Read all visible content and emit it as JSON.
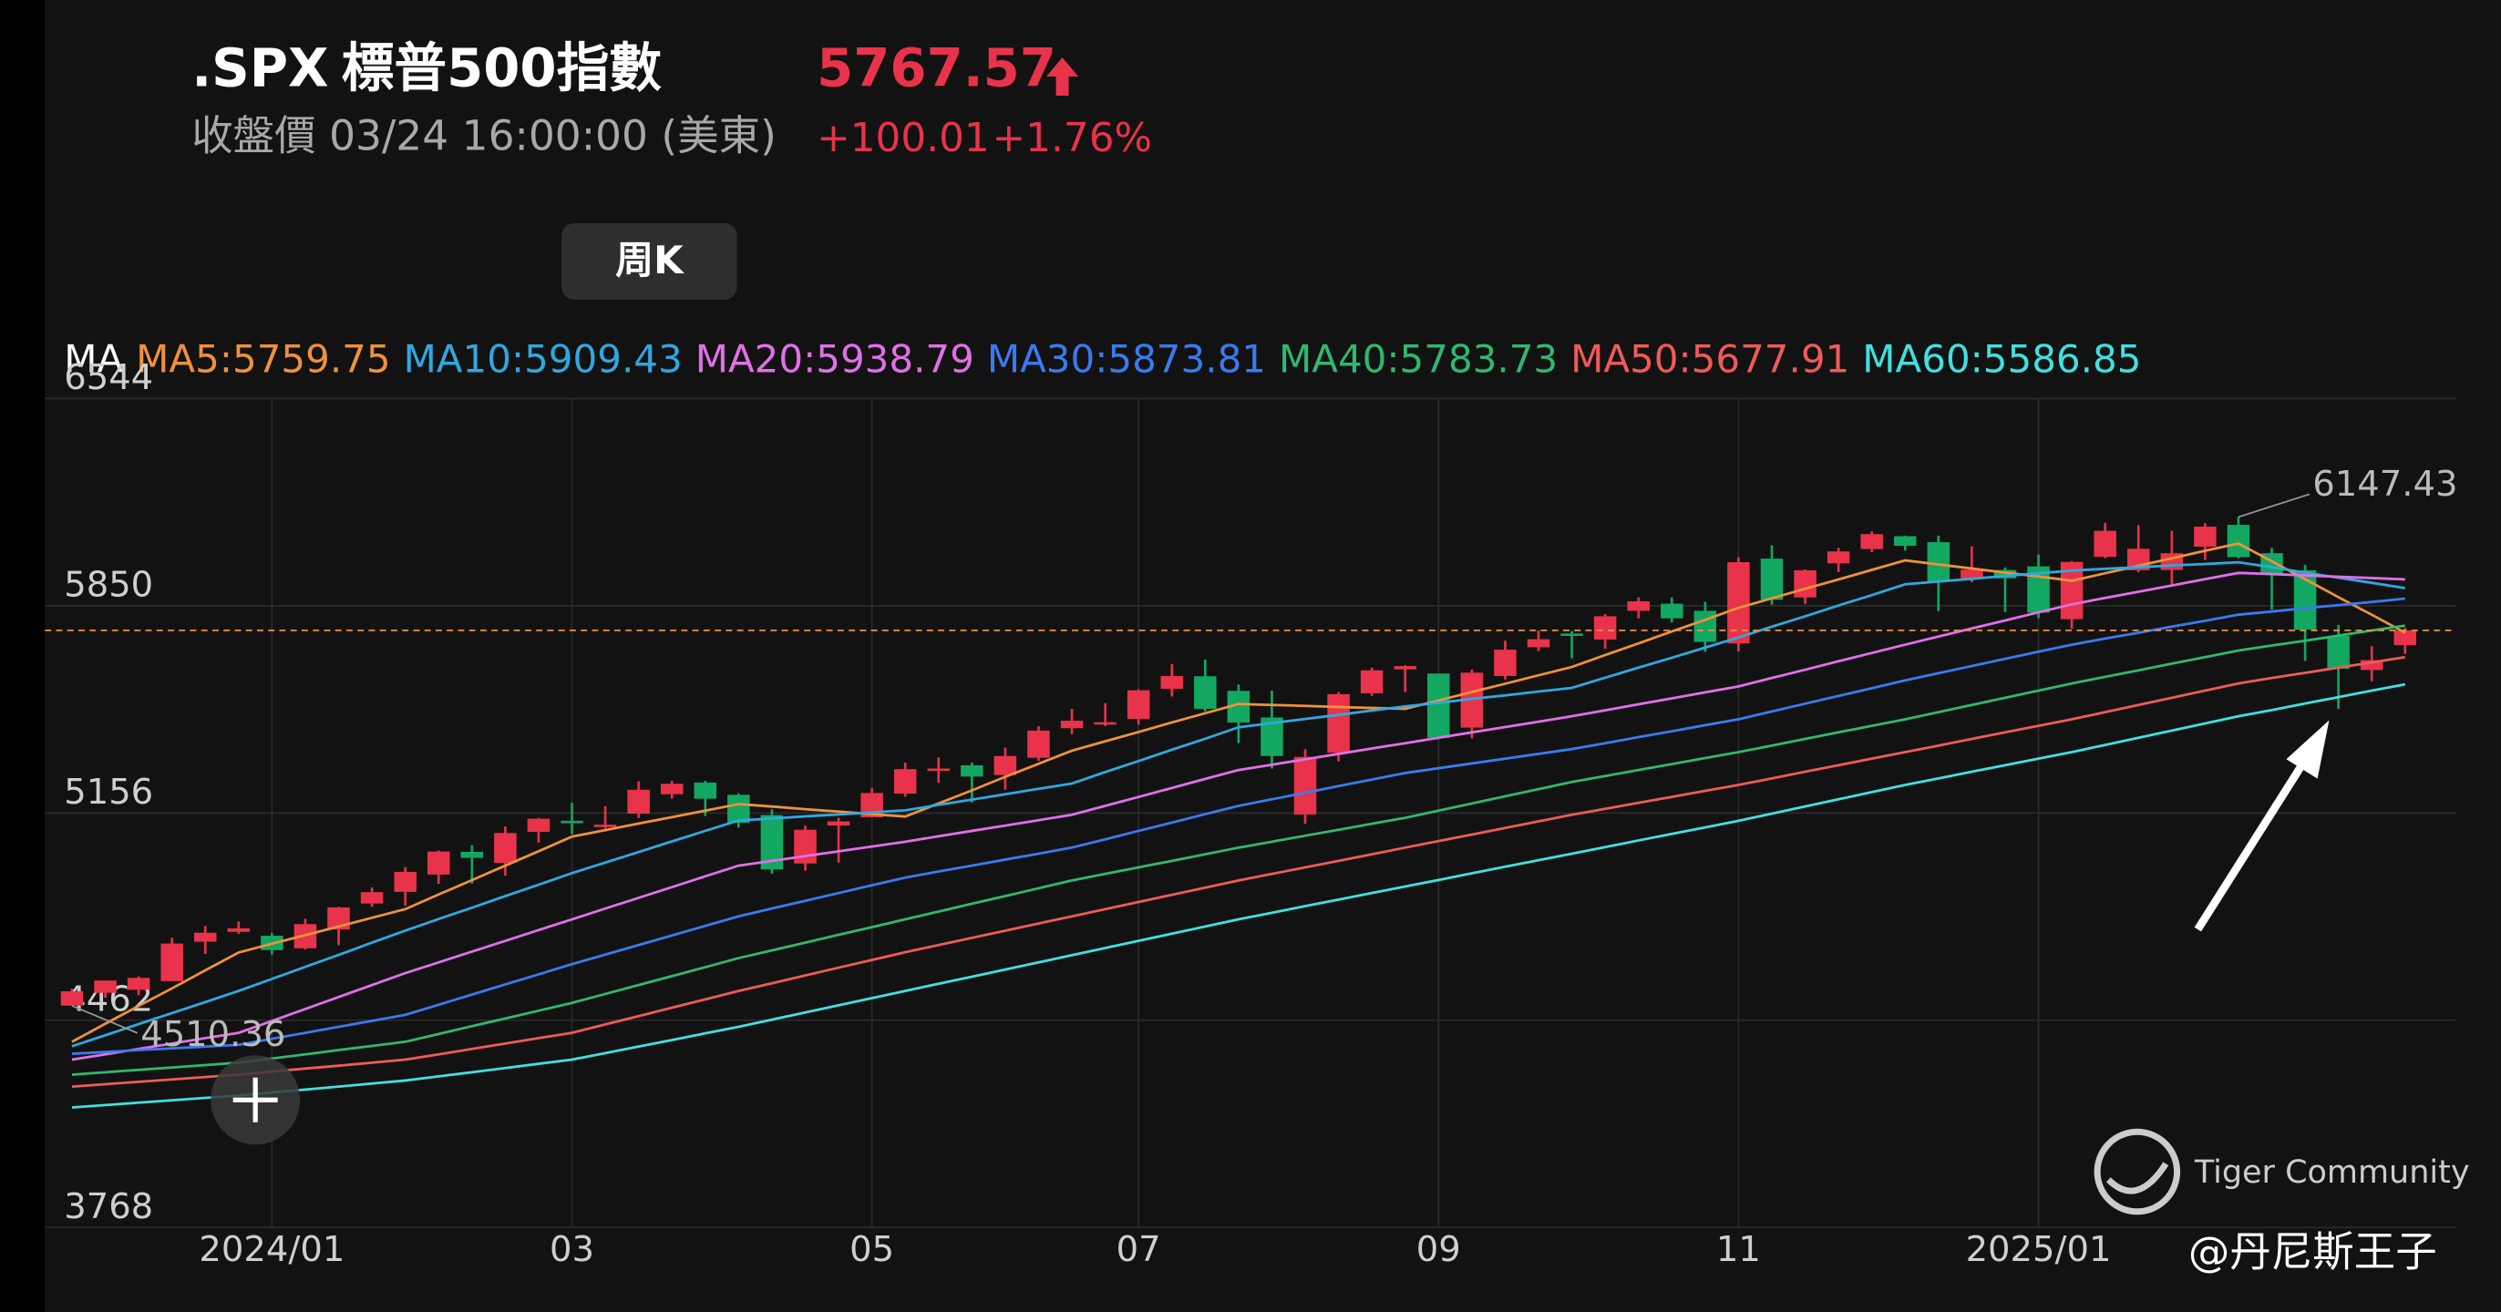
{
  "chart_data": {
    "type": "candlestick",
    "symbol": ".SPX",
    "name": "標普500指數",
    "time_label": "收盤價 03/24 16:00:00 (美東)",
    "change": "+100.01",
    "change_pct": "+1.76%",
    "period_button": "周K",
    "legend_title": "MA",
    "up_color": "#e8334a",
    "down_color": "#12a862",
    "ylim": [
      3768,
      6544
    ],
    "yticks": [
      3768,
      4462,
      5156,
      5850,
      6544
    ],
    "grid": true,
    "categories": [
      null,
      null,
      null,
      null,
      null,
      null,
      "2024/01",
      null,
      null,
      null,
      null,
      null,
      null,
      null,
      null,
      "03",
      null,
      null,
      null,
      null,
      null,
      null,
      null,
      null,
      "05",
      null,
      null,
      null,
      null,
      null,
      null,
      null,
      "07",
      null,
      null,
      null,
      null,
      null,
      null,
      null,
      null,
      "09",
      null,
      null,
      null,
      null,
      null,
      null,
      null,
      null,
      "11",
      null,
      null,
      null,
      null,
      null,
      null,
      null,
      null,
      "2025/01",
      null,
      null,
      null,
      null,
      null,
      null,
      null,
      null,
      null,
      null,
      null
    ],
    "open": [
      4511,
      4554,
      4564,
      4593,
      4725,
      4758,
      4745,
      4703,
      4766,
      4853,
      4892,
      4950,
      5026,
      4989,
      5093,
      5130,
      5112,
      5154,
      5219,
      5258,
      5217,
      5149,
      4987,
      5114,
      5142,
      5221,
      5305,
      5316,
      5283,
      5341,
      5440,
      5460,
      5471,
      5572,
      5614,
      5565,
      5476,
      5151,
      5358,
      5557,
      5637,
      5623,
      5442,
      5615,
      5711,
      5757,
      5737,
      5833,
      5857,
      5833,
      5724,
      6008,
      5878,
      5992,
      6040,
      6083,
      6063,
      5941,
      5970,
      5982,
      5805,
      6014,
      5969,
      5970,
      6048,
      6121,
      6026,
      5969,
      5749,
      5635,
      5718
    ],
    "high": [
      4568,
      4595,
      4609,
      4738,
      4778,
      4793,
      4754,
      4802,
      4842,
      4907,
      4975,
      5030,
      5048,
      5111,
      5140,
      5190,
      5179,
      5262,
      5264,
      5264,
      5222,
      5168,
      5114,
      5140,
      5239,
      5325,
      5342,
      5325,
      5375,
      5447,
      5505,
      5524,
      5570,
      5655,
      5670,
      5586,
      5566,
      5370,
      5561,
      5643,
      5651,
      5623,
      5636,
      5733,
      5767,
      5765,
      5822,
      5878,
      5878,
      5863,
      6012,
      6053,
      5972,
      6044,
      6099,
      6085,
      6085,
      6049,
      5978,
      6022,
      6000,
      6128,
      6120,
      6101,
      6127,
      6147.43,
      6044,
      5987,
      5786,
      5715,
      5776
    ],
    "low": [
      4510.36,
      4537,
      4546,
      4593,
      4684,
      4751,
      4682,
      4699,
      4714,
      4842,
      4846,
      4919,
      4920,
      4946,
      5057,
      5085,
      5104,
      5140,
      5204,
      5146,
      5107,
      4953,
      4963,
      4990,
      5142,
      5211,
      5257,
      5191,
      5234,
      5331,
      5420,
      5447,
      5452,
      5546,
      5497,
      5390,
      5305,
      5120,
      5329,
      5548,
      5561,
      5403,
      5406,
      5603,
      5698,
      5674,
      5706,
      5808,
      5794,
      5696,
      5697,
      5853,
      5856,
      5963,
      6030,
      6035,
      5832,
      5929,
      5829,
      5809,
      5773,
      6009,
      5962,
      5923,
      6003,
      6009,
      5837,
      5666,
      5505,
      5597,
      5689
    ],
    "close": [
      4559,
      4595,
      4604,
      4719,
      4755,
      4770,
      4697,
      4784,
      4840,
      4891,
      4959,
      5027,
      5006,
      5089,
      5137,
      5124,
      5117,
      5234,
      5254,
      5204,
      5123,
      4967,
      5100,
      5128,
      5223,
      5303,
      5305,
      5278,
      5347,
      5432,
      5465,
      5460,
      5567,
      5615,
      5505,
      5459,
      5347,
      5344,
      5554,
      5634,
      5648,
      5408,
      5626,
      5703,
      5738,
      5751,
      5815,
      5865,
      5808,
      5729,
      5996,
      5870,
      5969,
      6032,
      6090,
      6051,
      5931,
      5971,
      5942,
      5827,
      5997,
      6101,
      6041,
      6026,
      6115,
      6013,
      5955,
      5770,
      5639,
      5668,
      5767.57
    ],
    "ma_series": [
      {
        "name": "MA5:5759.75",
        "color": "#f0913a",
        "values": [
          4390,
          4450,
          4510,
          4569,
          4629,
          4689,
          4718,
          4747,
          4776,
          4805,
          4834,
          4883,
          4931,
          4980,
          5028,
          5077,
          5099,
          5121,
          5142,
          5164,
          5186,
          5178,
          5169,
          5161,
          5152,
          5144,
          5188,
          5232,
          5277,
          5321,
          5365,
          5396,
          5427,
          5459,
          5490,
          5521,
          5518,
          5515,
          5511,
          5508,
          5505,
          5533,
          5561,
          5589,
          5617,
          5645,
          5685,
          5724,
          5764,
          5803,
          5843,
          5875,
          5907,
          5938,
          5970,
          6002,
          5988,
          5975,
          5961,
          5948,
          5934,
          5959,
          5984,
          6009,
          6034,
          6059,
          5999,
          5939,
          5879,
          5820,
          5759.75
        ]
      },
      {
        "name": "MA10:5909.43",
        "color": "#2fa8e0",
        "values": [
          4375,
          4412,
          4449,
          4486,
          4523,
          4560,
          4600,
          4641,
          4681,
          4722,
          4762,
          4801,
          4839,
          4878,
          4916,
          4955,
          4990,
          5025,
          5061,
          5096,
          5131,
          5138,
          5145,
          5151,
          5158,
          5165,
          5183,
          5201,
          5219,
          5237,
          5255,
          5293,
          5330,
          5368,
          5405,
          5443,
          5457,
          5471,
          5485,
          5499,
          5513,
          5525,
          5538,
          5550,
          5563,
          5575,
          5609,
          5643,
          5676,
          5710,
          5744,
          5780,
          5815,
          5851,
          5886,
          5922,
          5931,
          5940,
          5950,
          5959,
          5968,
          5974,
          5979,
          5985,
          5990,
          5996,
          5979,
          5961,
          5944,
          5927,
          5909.43
        ]
      },
      {
        "name": "MA20:5938.79",
        "color": "#e070e8",
        "values": [
          4330,
          4348,
          4366,
          4384,
          4402,
          4420,
          4460,
          4500,
          4540,
          4580,
          4620,
          4656,
          4692,
          4728,
          4764,
          4800,
          4836,
          4872,
          4908,
          4944,
          4980,
          4996,
          5012,
          5028,
          5044,
          5060,
          5078,
          5096,
          5114,
          5132,
          5150,
          5180,
          5210,
          5240,
          5270,
          5300,
          5318,
          5336,
          5354,
          5372,
          5390,
          5408,
          5426,
          5444,
          5462,
          5480,
          5500,
          5520,
          5540,
          5560,
          5580,
          5608,
          5636,
          5664,
          5692,
          5720,
          5747,
          5774,
          5801,
          5828,
          5855,
          5876,
          5897,
          5918,
          5939,
          5960,
          5956,
          5952,
          5947,
          5943,
          5938.79
        ]
      },
      {
        "name": "MA30:5873.81",
        "color": "#3a7af0",
        "values": [
          4350,
          4356,
          4362,
          4368,
          4374,
          4380,
          4400,
          4420,
          4440,
          4460,
          4480,
          4514,
          4548,
          4582,
          4616,
          4650,
          4682,
          4714,
          4746,
          4778,
          4810,
          4836,
          4862,
          4888,
          4914,
          4940,
          4960,
          4980,
          5000,
          5020,
          5040,
          5068,
          5096,
          5124,
          5152,
          5180,
          5202,
          5224,
          5246,
          5268,
          5290,
          5306,
          5322,
          5338,
          5354,
          5370,
          5390,
          5410,
          5430,
          5450,
          5470,
          5496,
          5522,
          5548,
          5574,
          5600,
          5624,
          5648,
          5672,
          5696,
          5720,
          5740,
          5760,
          5780,
          5800,
          5820,
          5831,
          5842,
          5852,
          5863,
          5873.81
        ]
      },
      {
        "name": "MA40:5783.73",
        "color": "#30b870",
        "values": [
          4280,
          4288,
          4296,
          4304,
          4312,
          4320,
          4334,
          4348,
          4362,
          4376,
          4390,
          4416,
          4442,
          4468,
          4494,
          4520,
          4550,
          4580,
          4610,
          4640,
          4670,
          4696,
          4722,
          4748,
          4774,
          4800,
          4826,
          4852,
          4878,
          4904,
          4930,
          4952,
          4974,
          4996,
          5018,
          5040,
          5060,
          5080,
          5100,
          5120,
          5140,
          5164,
          5188,
          5212,
          5236,
          5260,
          5280,
          5300,
          5320,
          5340,
          5360,
          5382,
          5404,
          5426,
          5448,
          5470,
          5494,
          5518,
          5542,
          5566,
          5590,
          5612,
          5634,
          5656,
          5678,
          5700,
          5717,
          5733,
          5750,
          5767,
          5783.73
        ]
      },
      {
        "name": "MA50:5677.91",
        "color": "#f05a5a",
        "values": [
          4240,
          4248,
          4256,
          4264,
          4272,
          4280,
          4290,
          4300,
          4310,
          4320,
          4330,
          4348,
          4366,
          4384,
          4402,
          4420,
          4448,
          4476,
          4504,
          4532,
          4560,
          4586,
          4612,
          4638,
          4664,
          4690,
          4714,
          4738,
          4762,
          4786,
          4810,
          4834,
          4858,
          4882,
          4906,
          4930,
          4952,
          4974,
          4996,
          5018,
          5040,
          5062,
          5084,
          5106,
          5128,
          5150,
          5170,
          5190,
          5210,
          5230,
          5250,
          5272,
          5294,
          5316,
          5338,
          5360,
          5382,
          5404,
          5426,
          5448,
          5470,
          5494,
          5518,
          5542,
          5566,
          5590,
          5608,
          5625,
          5643,
          5660,
          5677.91
        ]
      },
      {
        "name": "MA60:5586.85",
        "color": "#40e0e0",
        "values": [
          4170,
          4178,
          4186,
          4194,
          4202,
          4210,
          4220,
          4230,
          4240,
          4250,
          4260,
          4274,
          4288,
          4302,
          4316,
          4330,
          4352,
          4374,
          4396,
          4418,
          4440,
          4464,
          4488,
          4512,
          4536,
          4560,
          4584,
          4608,
          4632,
          4656,
          4680,
          4704,
          4728,
          4752,
          4776,
          4800,
          4822,
          4844,
          4866,
          4888,
          4910,
          4932,
          4954,
          4976,
          4998,
          5020,
          5042,
          5064,
          5086,
          5108,
          5130,
          5154,
          5178,
          5202,
          5226,
          5250,
          5272,
          5294,
          5316,
          5338,
          5360,
          5384,
          5408,
          5432,
          5456,
          5480,
          5501,
          5523,
          5544,
          5566,
          5586.85
        ]
      }
    ],
    "watermark": "Tiger Community",
    "author": "@丹尼斯王子"
  }
}
